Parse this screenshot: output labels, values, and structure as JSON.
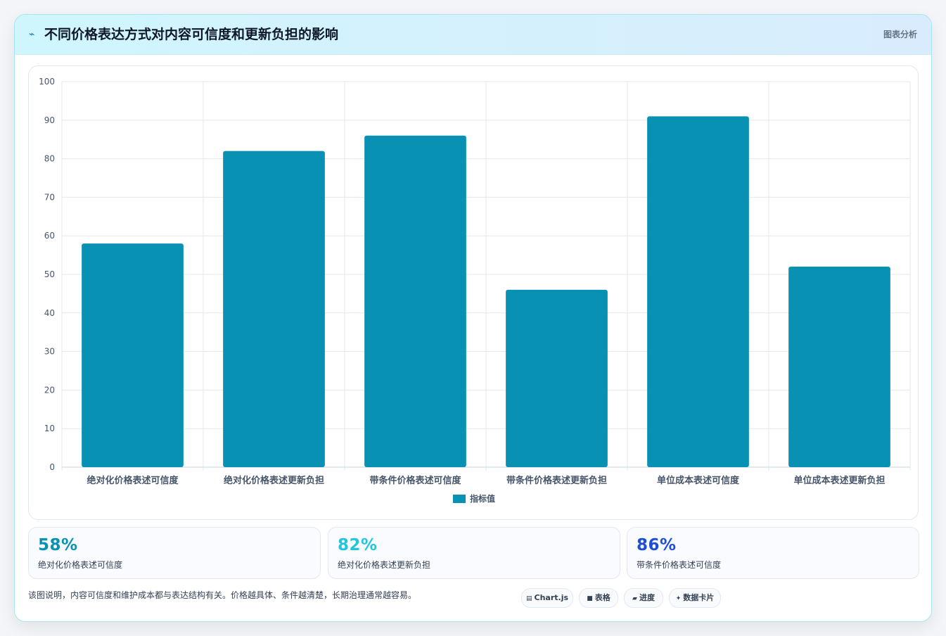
{
  "header": {
    "icon": "trend-spark-icon",
    "title": "不同价格表达方式对内容可信度和更新负担的影响",
    "tag": "图表分析"
  },
  "chart_data": {
    "type": "bar",
    "categories": [
      "绝对化价格表述可信度",
      "绝对化价格表述更新负担",
      "带条件价格表述可信度",
      "带条件价格表述更新负担",
      "单位成本表述可信度",
      "单位成本表述更新负担"
    ],
    "series": [
      {
        "name": "指标值",
        "values": [
          58,
          82,
          86,
          46,
          91,
          52
        ],
        "color": "#0891b2"
      }
    ],
    "yticks": [
      0,
      10,
      20,
      30,
      40,
      50,
      60,
      70,
      80,
      90,
      100
    ],
    "ylim": [
      0,
      100
    ],
    "grid": true,
    "legend_position": "bottom"
  },
  "stats": [
    {
      "value": "58%",
      "label": "绝对化价格表述可信度",
      "color": "#0891b2"
    },
    {
      "value": "82%",
      "label": "绝对化价格表述更新负担",
      "color": "#22c5dc"
    },
    {
      "value": "86%",
      "label": "带条件价格表述可信度",
      "color": "#1d4ed8"
    }
  ],
  "footnote": "该图说明，内容可信度和维护成本都与表达结构有关。价格越具体、条件越清楚，长期治理通常越容易。",
  "pills": [
    {
      "glyph": "▤",
      "icon": "chart-icon",
      "label": "Chart.js"
    },
    {
      "glyph": "■",
      "icon": "table-icon",
      "label": "表格"
    },
    {
      "glyph": "▰",
      "icon": "progress-icon",
      "label": "进度"
    },
    {
      "glyph": "✦",
      "icon": "data-card-icon",
      "label": "数据卡片"
    }
  ]
}
